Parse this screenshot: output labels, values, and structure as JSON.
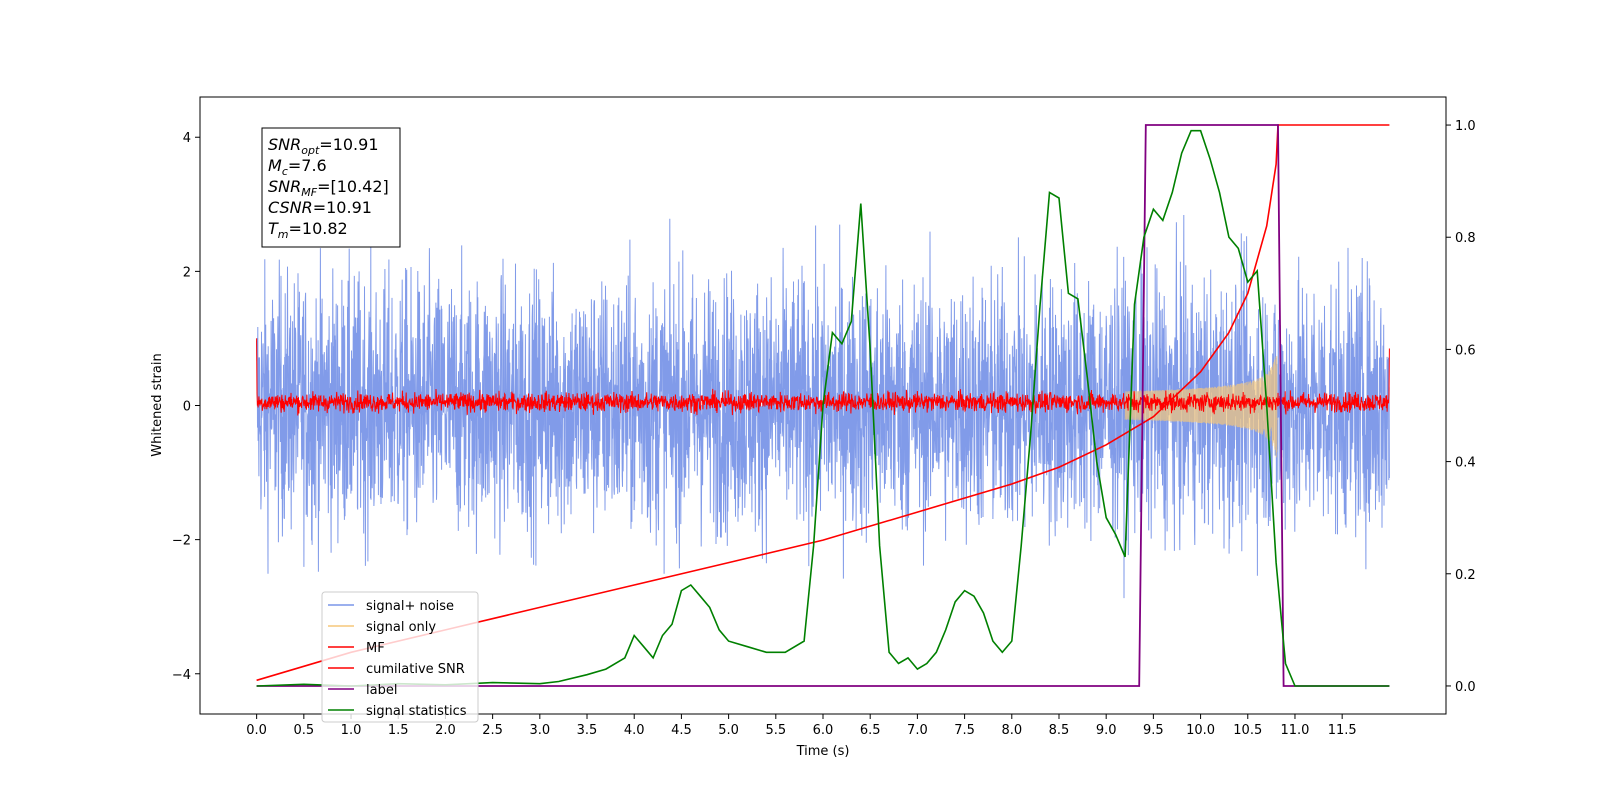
{
  "chart_data": {
    "type": "line",
    "title": "",
    "xlabel": "Time (s)",
    "ylabel": "Whitened strain",
    "xlim": [
      -0.6,
      12.6
    ],
    "ylim": [
      -4.6,
      4.6
    ],
    "ylim_right": [
      -0.05,
      1.05
    ],
    "x_ticks": [
      "0.0",
      "0.5",
      "1.0",
      "1.5",
      "2.0",
      "2.5",
      "3.0",
      "3.5",
      "4.0",
      "4.5",
      "5.0",
      "5.5",
      "6.0",
      "6.5",
      "7.0",
      "7.5",
      "8.0",
      "8.5",
      "9.0",
      "9.5",
      "10.0",
      "10.5",
      "11.0",
      "11.5"
    ],
    "y_ticks_left": [
      "4",
      "2",
      "0",
      "−2",
      "−4"
    ],
    "y_ticks_right": [
      "1.0",
      "0.8",
      "0.6",
      "0.4",
      "0.2",
      "0.0"
    ],
    "grid": false,
    "legend_position": "lower-left",
    "legend": [
      {
        "key": "signal_noise",
        "label": "signal+ noise",
        "color": "#7a96e8"
      },
      {
        "key": "signal_only",
        "label": "signal only",
        "color": "#f5c77a"
      },
      {
        "key": "mf",
        "label": "MF",
        "color": "#ff0000"
      },
      {
        "key": "csnr",
        "label": "cumilative SNR",
        "color": "#ff0000"
      },
      {
        "key": "label",
        "label": "label",
        "color": "#800080"
      },
      {
        "key": "stats",
        "label": "signal statistics",
        "color": "#008000"
      }
    ],
    "annotation": [
      {
        "sym": "SNR",
        "sub": "opt",
        "value": "=10.91"
      },
      {
        "sym": "M",
        "sub": "c",
        "value": "=7.6"
      },
      {
        "sym": "SNR",
        "sub": "MF",
        "value": "=[10.42]"
      },
      {
        "sym": "CSNR",
        "sub": "",
        "value": "=10.91"
      },
      {
        "sym": "T",
        "sub": "m",
        "value": "=10.82"
      }
    ],
    "series": {
      "signal_noise": {
        "axis": "left",
        "x_start": 0.0,
        "x_end": 12.0,
        "spread": 0.95,
        "max_abs": 4.15
      },
      "signal_only": {
        "axis": "left",
        "x_start": 9.2,
        "x_end": 10.82,
        "peak_amp": 1.05
      },
      "mf": {
        "axis": "left",
        "x_start": 0.0,
        "x_end": 12.0,
        "start_value": 1.0,
        "end_value": 0.85,
        "center": 0.05,
        "spread": 0.12
      },
      "csnr": {
        "axis": "right",
        "x": [
          0.0,
          1.0,
          2.0,
          3.0,
          4.0,
          5.0,
          6.0,
          7.0,
          8.0,
          8.5,
          9.0,
          9.5,
          10.0,
          10.3,
          10.5,
          10.7,
          10.8,
          10.82,
          12.0
        ],
        "y": [
          0.01,
          0.06,
          0.1,
          0.14,
          0.18,
          0.22,
          0.26,
          0.31,
          0.36,
          0.39,
          0.43,
          0.48,
          0.56,
          0.63,
          0.7,
          0.82,
          0.93,
          1.0,
          1.0
        ]
      },
      "label": {
        "axis": "right",
        "x": [
          0.0,
          9.35,
          9.42,
          10.82,
          10.88,
          12.0
        ],
        "y": [
          0.0,
          0.0,
          1.0,
          1.0,
          0.0,
          0.0
        ]
      },
      "stats": {
        "axis": "right",
        "x": [
          0.0,
          0.5,
          1.0,
          1.5,
          2.0,
          2.5,
          3.0,
          3.2,
          3.5,
          3.7,
          3.9,
          4.0,
          4.1,
          4.2,
          4.3,
          4.4,
          4.5,
          4.6,
          4.7,
          4.8,
          4.9,
          5.0,
          5.2,
          5.4,
          5.6,
          5.8,
          5.9,
          6.0,
          6.1,
          6.2,
          6.3,
          6.4,
          6.5,
          6.6,
          6.7,
          6.8,
          6.9,
          7.0,
          7.1,
          7.2,
          7.3,
          7.4,
          7.5,
          7.6,
          7.7,
          7.8,
          7.9,
          8.0,
          8.1,
          8.2,
          8.3,
          8.4,
          8.5,
          8.6,
          8.7,
          8.8,
          8.9,
          9.0,
          9.1,
          9.2,
          9.3,
          9.4,
          9.5,
          9.6,
          9.7,
          9.8,
          9.9,
          10.0,
          10.1,
          10.2,
          10.3,
          10.4,
          10.5,
          10.6,
          10.7,
          10.8,
          10.9,
          11.0,
          11.5,
          12.0
        ],
        "y": [
          0.0,
          0.003,
          0.0,
          0.004,
          0.002,
          0.006,
          0.004,
          0.008,
          0.02,
          0.03,
          0.05,
          0.09,
          0.07,
          0.05,
          0.09,
          0.11,
          0.17,
          0.18,
          0.16,
          0.14,
          0.1,
          0.08,
          0.07,
          0.06,
          0.06,
          0.08,
          0.25,
          0.5,
          0.63,
          0.61,
          0.65,
          0.86,
          0.6,
          0.25,
          0.06,
          0.04,
          0.05,
          0.03,
          0.04,
          0.06,
          0.1,
          0.15,
          0.17,
          0.16,
          0.13,
          0.08,
          0.06,
          0.08,
          0.25,
          0.45,
          0.68,
          0.88,
          0.87,
          0.7,
          0.69,
          0.55,
          0.4,
          0.3,
          0.27,
          0.23,
          0.68,
          0.8,
          0.85,
          0.83,
          0.88,
          0.95,
          0.99,
          0.99,
          0.94,
          0.88,
          0.8,
          0.78,
          0.72,
          0.74,
          0.5,
          0.22,
          0.04,
          0.0,
          0.0,
          0.0
        ]
      }
    }
  }
}
